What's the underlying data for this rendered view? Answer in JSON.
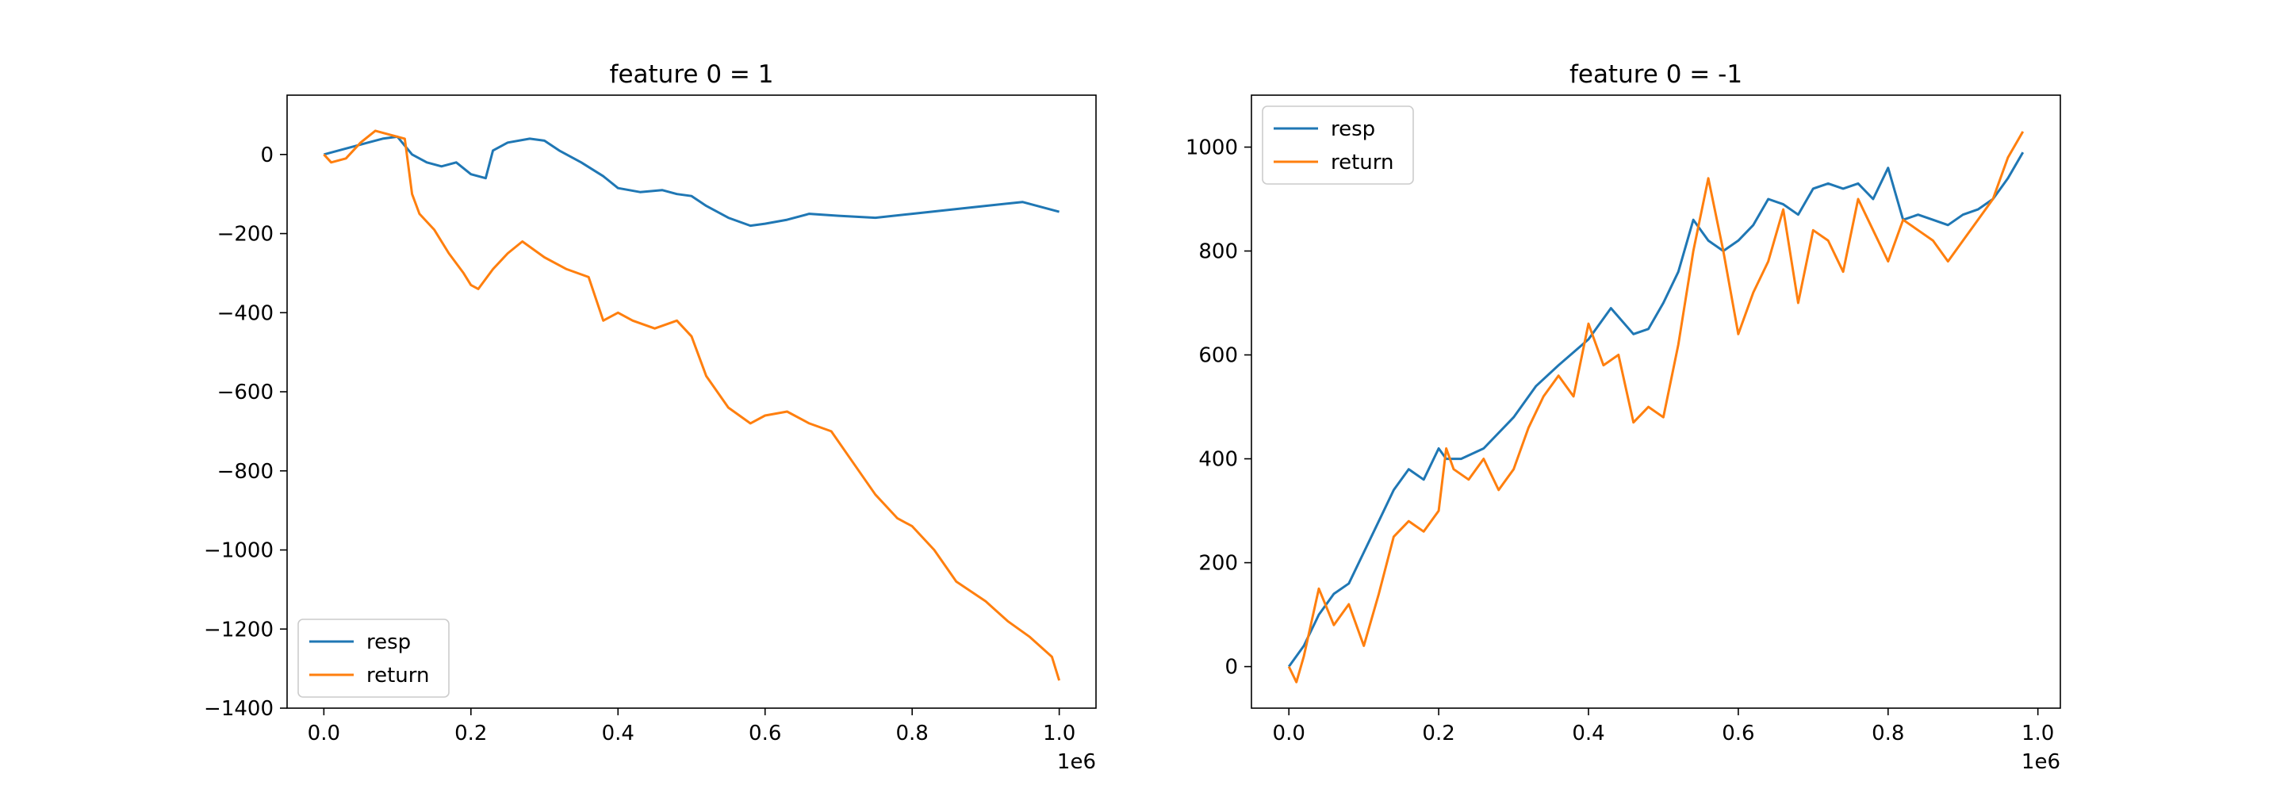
{
  "chart_data": [
    {
      "type": "line",
      "title": "feature 0 = 1",
      "xlabel": "",
      "ylabel": "",
      "x_offset_label": "1e6",
      "xlim": [
        -0.05,
        1.05
      ],
      "ylim": [
        -1400,
        150
      ],
      "xticks": [
        0.0,
        0.2,
        0.4,
        0.6,
        0.8,
        1.0
      ],
      "xtick_labels": [
        "0.0",
        "0.2",
        "0.4",
        "0.6",
        "0.8",
        "1.0"
      ],
      "yticks": [
        0,
        -200,
        -400,
        -600,
        -800,
        -1000,
        -1200,
        -1400
      ],
      "ytick_labels": [
        "0",
        "−200",
        "−400",
        "−600",
        "−800",
        "−1000",
        "−1200",
        "−1400"
      ],
      "legend_position": "lower-left",
      "grid": false,
      "series": [
        {
          "name": "resp",
          "color": "#1f77b4",
          "x": [
            0.0,
            0.02,
            0.04,
            0.06,
            0.08,
            0.1,
            0.12,
            0.14,
            0.16,
            0.18,
            0.2,
            0.22,
            0.23,
            0.25,
            0.28,
            0.3,
            0.32,
            0.35,
            0.38,
            0.4,
            0.43,
            0.46,
            0.48,
            0.5,
            0.52,
            0.55,
            0.58,
            0.6,
            0.63,
            0.66,
            0.7,
            0.75,
            0.8,
            0.85,
            0.9,
            0.95,
            1.0
          ],
          "y": [
            0,
            10,
            20,
            30,
            40,
            45,
            0,
            -20,
            -30,
            -20,
            -50,
            -60,
            10,
            30,
            40,
            35,
            10,
            -20,
            -55,
            -85,
            -95,
            -90,
            -100,
            -105,
            -130,
            -160,
            -180,
            -175,
            -165,
            -150,
            -155,
            -160,
            -150,
            -140,
            -130,
            -120,
            -145
          ]
        },
        {
          "name": "return",
          "color": "#ff7f0e",
          "x": [
            0.0,
            0.01,
            0.03,
            0.05,
            0.07,
            0.09,
            0.11,
            0.12,
            0.13,
            0.15,
            0.17,
            0.19,
            0.2,
            0.21,
            0.23,
            0.25,
            0.27,
            0.3,
            0.33,
            0.36,
            0.38,
            0.4,
            0.42,
            0.45,
            0.48,
            0.5,
            0.52,
            0.55,
            0.58,
            0.6,
            0.63,
            0.66,
            0.69,
            0.72,
            0.75,
            0.78,
            0.8,
            0.83,
            0.86,
            0.9,
            0.93,
            0.96,
            0.99,
            1.0
          ],
          "y": [
            0,
            -20,
            -10,
            30,
            60,
            50,
            40,
            -100,
            -150,
            -190,
            -250,
            -300,
            -330,
            -340,
            -290,
            -250,
            -220,
            -260,
            -290,
            -310,
            -420,
            -400,
            -420,
            -440,
            -420,
            -460,
            -560,
            -640,
            -680,
            -660,
            -650,
            -680,
            -700,
            -780,
            -860,
            -920,
            -940,
            -1000,
            -1080,
            -1130,
            -1180,
            -1220,
            -1270,
            -1330
          ]
        }
      ]
    },
    {
      "type": "line",
      "title": "feature 0 = -1",
      "xlabel": "",
      "ylabel": "",
      "x_offset_label": "1e6",
      "xlim": [
        -0.05,
        1.03
      ],
      "ylim": [
        -80,
        1100
      ],
      "xticks": [
        0.0,
        0.2,
        0.4,
        0.6,
        0.8,
        1.0
      ],
      "xtick_labels": [
        "0.0",
        "0.2",
        "0.4",
        "0.6",
        "0.8",
        "1.0"
      ],
      "yticks": [
        0,
        200,
        400,
        600,
        800,
        1000
      ],
      "ytick_labels": [
        "0",
        "200",
        "400",
        "600",
        "800",
        "1000"
      ],
      "legend_position": "top-left",
      "grid": false,
      "series": [
        {
          "name": "resp",
          "color": "#1f77b4",
          "x": [
            0.0,
            0.02,
            0.04,
            0.06,
            0.08,
            0.1,
            0.12,
            0.14,
            0.16,
            0.18,
            0.2,
            0.21,
            0.23,
            0.26,
            0.3,
            0.33,
            0.36,
            0.4,
            0.43,
            0.46,
            0.48,
            0.5,
            0.52,
            0.54,
            0.56,
            0.58,
            0.6,
            0.62,
            0.64,
            0.66,
            0.68,
            0.7,
            0.72,
            0.74,
            0.76,
            0.78,
            0.8,
            0.82,
            0.84,
            0.86,
            0.88,
            0.9,
            0.92,
            0.94,
            0.96,
            0.98
          ],
          "y": [
            0,
            40,
            100,
            140,
            160,
            220,
            280,
            340,
            380,
            360,
            420,
            400,
            400,
            420,
            480,
            540,
            580,
            630,
            690,
            640,
            650,
            700,
            760,
            860,
            820,
            800,
            820,
            850,
            900,
            890,
            870,
            920,
            930,
            920,
            930,
            900,
            960,
            860,
            870,
            860,
            850,
            870,
            880,
            900,
            940,
            990
          ]
        },
        {
          "name": "return",
          "color": "#ff7f0e",
          "x": [
            0.0,
            0.01,
            0.02,
            0.04,
            0.06,
            0.08,
            0.1,
            0.12,
            0.14,
            0.16,
            0.18,
            0.2,
            0.21,
            0.22,
            0.24,
            0.26,
            0.28,
            0.3,
            0.32,
            0.34,
            0.36,
            0.38,
            0.4,
            0.42,
            0.44,
            0.46,
            0.48,
            0.5,
            0.52,
            0.54,
            0.56,
            0.58,
            0.6,
            0.62,
            0.64,
            0.66,
            0.68,
            0.7,
            0.72,
            0.74,
            0.76,
            0.78,
            0.8,
            0.82,
            0.84,
            0.86,
            0.88,
            0.9,
            0.92,
            0.94,
            0.96,
            0.98
          ],
          "y": [
            0,
            -30,
            20,
            150,
            80,
            120,
            40,
            140,
            250,
            280,
            260,
            300,
            420,
            380,
            360,
            400,
            340,
            380,
            460,
            520,
            560,
            520,
            660,
            580,
            600,
            470,
            500,
            480,
            620,
            800,
            940,
            800,
            640,
            720,
            780,
            880,
            700,
            840,
            820,
            760,
            900,
            840,
            780,
            860,
            840,
            820,
            780,
            820,
            860,
            900,
            980,
            1030
          ]
        }
      ]
    }
  ]
}
